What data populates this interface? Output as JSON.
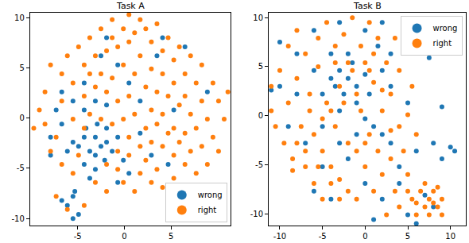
{
  "chart_data": [
    {
      "type": "scatter",
      "title": "Task A",
      "xlim": [
        -10.1,
        11.4
      ],
      "ylim": [
        -10.7,
        10.5
      ],
      "xticks": [
        -5,
        0,
        5
      ],
      "yticks": [
        -10,
        -5,
        0,
        5,
        10
      ],
      "legend": "lower right",
      "series": [
        {
          "name": "wrong",
          "color": "#1f77b4",
          "x": [
            -3.1,
            -2.5,
            -3.7,
            -1.9,
            -4.3,
            -3.1,
            -2.1,
            -4.9,
            -1.3,
            -4.1,
            -2.9,
            -5.5,
            -6.7,
            -6.1,
            -7.9,
            -4.3,
            -3.1,
            -0.7,
            -0.1,
            -1.9,
            -7.3,
            -5.5,
            -4.3,
            -3.1,
            -1.9,
            -0.7,
            0.5,
            1.7,
            2.9,
            4.7,
            -0.7,
            -5.5,
            -6.1,
            -4.9,
            -5.5,
            -6.7,
            -5.3,
            -1.9,
            -2.5,
            4.1,
            6.5,
            8.9,
            5.3,
            1.7,
            -6.7,
            0.5,
            -7.9,
            -4.3,
            -3.7,
            3.5
          ],
          "y": [
            -1.9,
            -2.8,
            -3.3,
            -2.4,
            -1.9,
            -3.7,
            -4.2,
            -2.8,
            -3.3,
            -1,
            -0.6,
            -2.4,
            -0.6,
            -3.3,
            -3.7,
            -4.6,
            -5.1,
            -1.9,
            -4.2,
            -1,
            0.8,
            1.7,
            3.5,
            1.7,
            1.3,
            5.3,
            3.5,
            -1.5,
            -3.7,
            -4.6,
            -6.4,
            -7.8,
            -8.7,
            -9.6,
            -10,
            -8.2,
            -7.3,
            8,
            6.2,
            8,
            7.1,
            2.6,
            0.8,
            1.7,
            2.6,
            -5.5,
            -1.9,
            0.8,
            -6,
            6.2
          ]
        },
        {
          "name": "right",
          "color": "#ff7f0e",
          "x": [
            -9.7,
            -8.5,
            -7.9,
            -7.3,
            -6.7,
            -6.7,
            -6.1,
            -5.5,
            -5.5,
            -5.5,
            -4.9,
            -4.9,
            -4.3,
            -4.3,
            -4.3,
            -3.7,
            -3.7,
            -3.7,
            -3.1,
            -3.1,
            -3.1,
            -2.5,
            -2.5,
            -2.5,
            -1.9,
            -1.9,
            -1.9,
            -1.9,
            -1.3,
            -1.3,
            -1.3,
            -1.3,
            -0.7,
            -0.7,
            -0.7,
            -0.7,
            -0.1,
            -0.1,
            -0.1,
            -0.1,
            0.5,
            0.5,
            0.5,
            0.5,
            0.5,
            1.1,
            1.1,
            1.1,
            1.1,
            1.7,
            1.7,
            1.7,
            1.7,
            2.3,
            2.3,
            2.3,
            2.3,
            2.9,
            2.9,
            2.9,
            2.9,
            2.9,
            3.5,
            3.5,
            3.5,
            3.5,
            4.1,
            4.1,
            4.1,
            4.1,
            4.1,
            4.7,
            4.7,
            4.7,
            5.3,
            5.3,
            5.3,
            5.3,
            5.3,
            5.9,
            5.9,
            5.9,
            6.5,
            6.5,
            6.5,
            6.5,
            7.1,
            7.1,
            7.1,
            7.7,
            7.7,
            7.7,
            8.3,
            8.3,
            8.3,
            8.9,
            8.9,
            9.5,
            9.5,
            10.1,
            10.1,
            10.7,
            11.1,
            -7.9,
            -6.7,
            -6.1,
            -4.3,
            -7.3,
            -9.1,
            -8.5
          ],
          "y": [
            -1,
            2.6,
            5.3,
            -1.9,
            1.7,
            4.4,
            6.2,
            -0.1,
            3.5,
            -5.5,
            7.1,
            -3.7,
            5.3,
            2.2,
            -1,
            8,
            4.4,
            0.4,
            6.2,
            3.1,
            -6.4,
            8.9,
            4.4,
            -0.1,
            6.7,
            2.6,
            -4.6,
            -7.3,
            9.8,
            8,
            4,
            -0.6,
            7.1,
            1.7,
            -3.3,
            -5.1,
            8.9,
            5.3,
            -0.1,
            -6.4,
            10.3,
            7.6,
            2.2,
            -1.9,
            -3.7,
            8.5,
            4.4,
            0.4,
            -7.3,
            9.8,
            6.2,
            -2.8,
            -5.5,
            8.9,
            3.1,
            -1,
            -4.2,
            7.6,
            4.9,
            0.8,
            -2.4,
            -6.4,
            9.4,
            2.6,
            -0.6,
            -5.1,
            6.7,
            4.4,
            0.4,
            -2.8,
            -6.9,
            8,
            2.2,
            -1.5,
            5.8,
            3.5,
            -1,
            -3.7,
            -6,
            7.1,
            1.3,
            -2.4,
            4.4,
            2.2,
            -1.5,
            -4.6,
            6.2,
            0.4,
            -3.3,
            3.5,
            -1,
            -5.5,
            5.3,
            1.7,
            -2.8,
            -0.1,
            -4.6,
            3.5,
            -1.9,
            1.7,
            -3.3,
            -0.1,
            2.6,
            -3.3,
            -4.6,
            -9.1,
            -8.7,
            -7.8,
            0.8,
            -0.6
          ]
        }
      ]
    },
    {
      "type": "scatter",
      "title": "Task B",
      "xlim": [
        -11.3,
        11.8
      ],
      "ylim": [
        -11.2,
        10.5
      ],
      "xticks": [
        -10,
        -5,
        0,
        5,
        10
      ],
      "yticks": [
        -10,
        -5,
        0,
        5,
        10
      ],
      "legend": "upper right",
      "series": [
        {
          "name": "wrong",
          "color": "#1f77b4",
          "x": [
            -3,
            -2,
            -1,
            -2.5,
            -4,
            -1.5,
            0,
            -3.5,
            -5,
            -1,
            0.5,
            -2,
            -4,
            -6,
            -3,
            0,
            1,
            -1,
            2,
            3,
            1.5,
            -8,
            -10,
            -9,
            -7,
            -5,
            -4,
            -6,
            -2,
            0,
            1,
            2,
            4,
            5,
            6,
            8,
            9,
            8,
            10,
            10.5,
            9,
            7.5,
            5,
            3,
            6,
            4,
            -8,
            -11,
            -10,
            -6,
            -3,
            0,
            2,
            3,
            -5,
            -3,
            7,
            2
          ],
          "y": [
            4.6,
            3.8,
            3.0,
            2.2,
            3.8,
            5.4,
            4.2,
            3.0,
            2.2,
            1.3,
            2.2,
            6.3,
            6.3,
            4.6,
            0.5,
            -0.3,
            -1.1,
            -1.9,
            4.6,
            3.0,
            7.1,
            6.3,
            3.0,
            -1.1,
            -2.8,
            -5.2,
            -8.5,
            -7.7,
            -4.4,
            -6.9,
            -10.6,
            -8.5,
            -6.9,
            -10.1,
            -11.0,
            -9.3,
            -4.4,
            -2.8,
            -3.2,
            -3.6,
            0.9,
            5.9,
            1.3,
            -2.8,
            -3.6,
            -5.2,
            2.2,
            2.6,
            7.5,
            8.7,
            9.5,
            8.7,
            9.5,
            6.3,
            -1.1,
            -2.8,
            -8.1,
            -1.9
          ]
        },
        {
          "name": "right",
          "color": "#ff7f0e",
          "x": [
            -11,
            -11,
            -10.5,
            -10,
            -9.5,
            -9,
            -9,
            -8.5,
            -8,
            -8,
            -7.5,
            -7,
            -7,
            -6.5,
            -6,
            -6,
            -5.5,
            -5.5,
            -5,
            -5,
            -5,
            -4.5,
            -4.5,
            -4,
            -4,
            -3.5,
            -3.5,
            -3,
            -2.5,
            -2.5,
            -2,
            -2,
            -1.5,
            -1.5,
            -1,
            -1,
            -0.5,
            -0.5,
            0,
            0,
            0.5,
            0.5,
            1,
            1,
            1.5,
            1.5,
            2,
            2,
            2.5,
            2.5,
            3,
            3,
            3.5,
            3.5,
            4,
            4,
            4,
            4.5,
            5,
            5,
            5.5,
            5.5,
            6,
            6,
            6.5,
            7,
            7,
            7.5,
            7.5,
            8,
            8,
            8.5,
            8.5,
            9,
            9,
            6,
            5,
            -8,
            -6.5,
            -3,
            -2,
            0.5,
            1,
            -1,
            -4,
            -7,
            -5.5,
            -8.5,
            -3,
            0,
            2,
            3,
            -3.5
          ],
          "y": [
            3.0,
            0.5,
            -1.1,
            4.6,
            -2.8,
            7.1,
            1.3,
            -4.4,
            8.7,
            3.8,
            -1.1,
            6.3,
            -5.2,
            2.2,
            -1.9,
            -6.9,
            7.9,
            5.0,
            -0.3,
            -3.6,
            -8.5,
            9.5,
            1.3,
            -5.2,
            -6.9,
            7.1,
            -1.1,
            -6.5,
            8.3,
            1.3,
            -2.8,
            -7.7,
            10.0,
            4.6,
            -3.6,
            -8.5,
            7.1,
            0.5,
            5.4,
            -5.2,
            9.5,
            -1.9,
            3.4,
            -7.7,
            7.9,
            -3.6,
            0.5,
            -6.0,
            5.4,
            -10.1,
            2.2,
            -4.4,
            7.9,
            -7.7,
            4.6,
            -1.1,
            -9.3,
            -3.6,
            0.1,
            -6.0,
            3.0,
            -8.5,
            -1.9,
            -10.1,
            -7.7,
            -9.3,
            -6.9,
            -8.5,
            -10.1,
            -7.7,
            -8.9,
            -9.3,
            -7.3,
            -8.5,
            -10.1,
            -8.9,
            -7.7,
            -2.8,
            0.5,
            3.0,
            5.4,
            4.6,
            6.3,
            2.2,
            0.5,
            -3.6,
            -5.2,
            -5.6,
            -8.5,
            -2.8,
            2.6,
            -1.5,
            5.4
          ]
        }
      ]
    }
  ]
}
